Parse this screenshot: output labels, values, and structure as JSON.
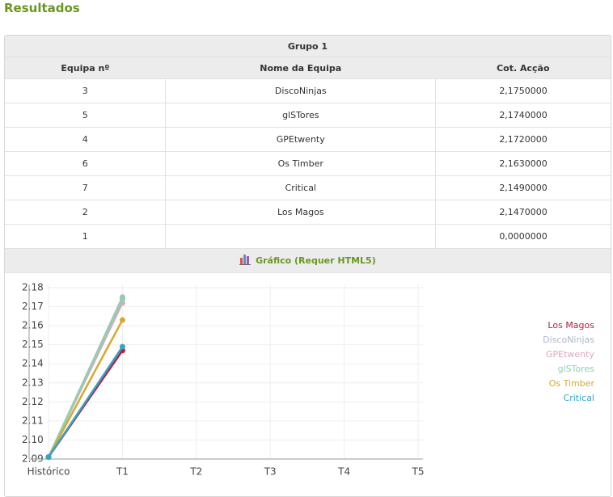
{
  "header": {
    "title": "Resultados"
  },
  "table": {
    "group": "Grupo 1",
    "columns": [
      "Equipa nº",
      "Nome da Equipa",
      "Cot. Acção"
    ],
    "rows": [
      [
        "3",
        "DiscoNinjas",
        "2,1750000"
      ],
      [
        "5",
        "glSTores",
        "2,1740000"
      ],
      [
        "4",
        "GPEtwenty",
        "2,1720000"
      ],
      [
        "6",
        "Os Timber",
        "2,1630000"
      ],
      [
        "7",
        "Critical",
        "2,1490000"
      ],
      [
        "2",
        "Los Magos",
        "2,1470000"
      ],
      [
        "1",
        null,
        "0,0000000"
      ]
    ]
  },
  "chart_section": {
    "title": "Gráfico (Requer HTML5)"
  },
  "chart_data": {
    "type": "line",
    "categories": [
      "Histórico",
      "T1",
      "T2",
      "T3",
      "T4",
      "T5"
    ],
    "series": [
      {
        "name": "Los Magos",
        "color": "#b5213a",
        "values": [
          2.091,
          2.147,
          null,
          null,
          null,
          null
        ]
      },
      {
        "name": "DiscoNinjas",
        "color": "#a9b8cc",
        "values": [
          2.091,
          2.175,
          null,
          null,
          null,
          null
        ]
      },
      {
        "name": "GPEtwenty",
        "color": "#dba8b8",
        "values": [
          2.091,
          2.172,
          null,
          null,
          null,
          null
        ]
      },
      {
        "name": "glSTores",
        "color": "#8fd0ae",
        "values": [
          2.091,
          2.174,
          null,
          null,
          null,
          null
        ]
      },
      {
        "name": "Os Timber",
        "color": "#d8a832",
        "values": [
          2.091,
          2.163,
          null,
          null,
          null,
          null
        ]
      },
      {
        "name": "Critical",
        "color": "#35a4c8",
        "values": [
          2.091,
          2.149,
          null,
          null,
          null,
          null
        ]
      }
    ],
    "ylim": [
      2.09,
      2.18
    ],
    "yticks": [
      2.09,
      {
        "value": 2.1,
        "label": "2.10"
      },
      2.11,
      2.12,
      2.13,
      2.14,
      2.15,
      2.16,
      2.17,
      2.18
    ],
    "grid": true,
    "legend": "right"
  }
}
